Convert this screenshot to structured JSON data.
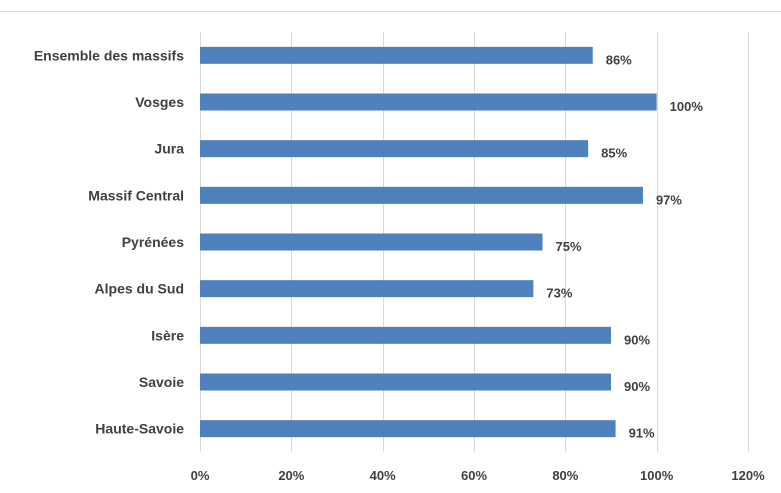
{
  "chart_data": {
    "type": "bar",
    "orientation": "horizontal",
    "title": "",
    "xlabel": "",
    "ylabel": "",
    "categories": [
      "Ensemble des massifs",
      "Vosges",
      "Jura",
      "Massif Central",
      "Pyrénées",
      "Alpes du Sud",
      "Isère",
      "Savoie",
      "Haute-Savoie"
    ],
    "values": [
      86,
      100,
      85,
      97,
      75,
      73,
      90,
      90,
      91
    ],
    "value_labels": [
      "86%",
      "100%",
      "85%",
      "97%",
      "75%",
      "73%",
      "90%",
      "90%",
      "91%"
    ],
    "xlim": [
      0,
      120
    ],
    "xticks": [
      0,
      20,
      40,
      60,
      80,
      100,
      120
    ],
    "xtick_labels": [
      "0%",
      "20%",
      "40%",
      "60%",
      "80%",
      "100%",
      "120%"
    ],
    "grid": "vertical",
    "legend": "none",
    "bar_color": "#4f81bd"
  }
}
